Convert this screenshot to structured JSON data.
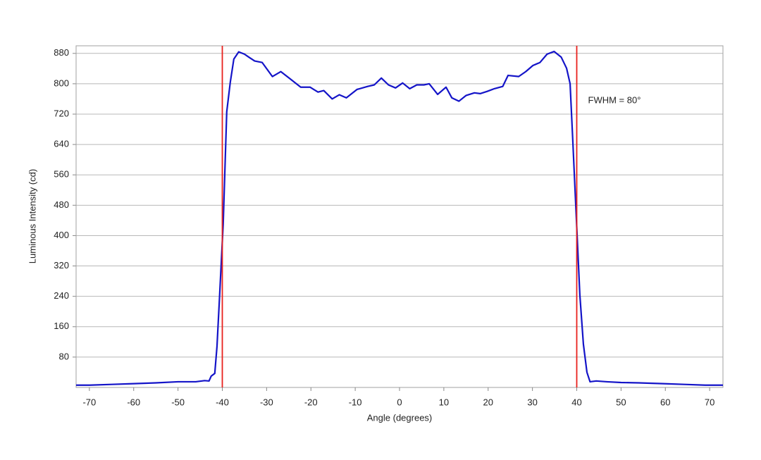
{
  "chart_data": {
    "type": "line",
    "xlabel": "Angle (degrees)",
    "ylabel": "Luminous Intensity (cd)",
    "annotation": "FWHM = 80°",
    "vlines": [
      -40,
      40
    ],
    "vline_color": "#e8201c",
    "xlim": [
      -73,
      73
    ],
    "xticks": [
      -70,
      -60,
      -50,
      -40,
      -30,
      -20,
      -10,
      0,
      10,
      20,
      30,
      40,
      50,
      60,
      70
    ],
    "ylim": [
      0,
      900
    ],
    "yticks": [
      80,
      160,
      240,
      320,
      400,
      480,
      560,
      640,
      720,
      800,
      880
    ],
    "grid": true,
    "x": [
      -73,
      -70,
      -65,
      -60,
      -55,
      -50,
      -46,
      -44,
      -43,
      -42.5,
      -41.7,
      -41.2,
      -40.6,
      -39.8,
      -39,
      -38.2,
      -37.4,
      -36.3,
      -35,
      -34,
      -32.7,
      -31,
      -28.7,
      -26.8,
      -24.7,
      -22.3,
      -20.2,
      -18.4,
      -17.1,
      -15.2,
      -13.6,
      -12,
      -9.6,
      -7.2,
      -5.7,
      -4.1,
      -2.5,
      -0.9,
      0.7,
      2.3,
      3.9,
      5.5,
      6.7,
      8.6,
      10.5,
      11.8,
      13.4,
      15,
      16.9,
      18.2,
      19.8,
      21.4,
      23.3,
      24.5,
      26.9,
      28.5,
      30.1,
      31.7,
      33.3,
      34.9,
      36.5,
      37.7,
      38.5,
      39.1,
      39.9,
      40.7,
      41.5,
      42.3,
      43,
      44.4,
      46.8,
      50,
      54,
      59.5,
      64.3,
      69,
      73
    ],
    "series": [
      {
        "color": "#1414c8",
        "values": [
          6,
          6,
          8,
          10,
          12,
          15,
          15,
          18,
          17,
          30,
          37,
          108,
          244,
          430,
          726,
          804,
          865,
          884,
          878,
          870,
          860,
          856,
          819,
          832,
          813,
          791,
          791,
          778,
          782,
          760,
          771,
          763,
          785,
          793,
          797,
          815,
          797,
          789,
          802,
          787,
          797,
          797,
          800,
          772,
          791,
          763,
          754,
          769,
          776,
          774,
          780,
          787,
          793,
          822,
          819,
          832,
          848,
          856,
          878,
          885,
          870,
          841,
          800,
          652,
          448,
          244,
          114,
          40,
          15,
          17,
          15,
          13,
          12,
          10,
          8,
          6,
          6
        ]
      }
    ]
  }
}
